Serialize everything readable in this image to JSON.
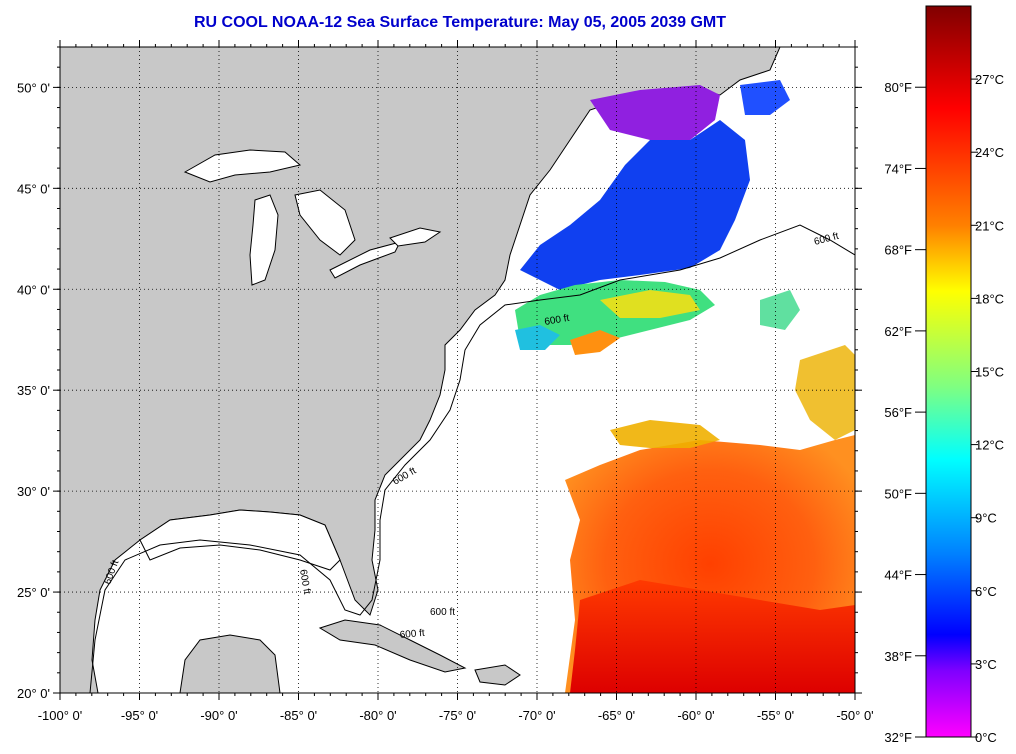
{
  "title": "RU COOL  NOAA-12  Sea Surface Temperature:  May 05, 2005 2039 GMT",
  "map": {
    "lon_labels": [
      "-100° 0'",
      "-95° 0'",
      "-90° 0'",
      "-85° 0'",
      "-80° 0'",
      "-75° 0'",
      "-70° 0'",
      "-65° 0'",
      "-60° 0'",
      "-55° 0'",
      "-50° 0'"
    ],
    "lon_values": [
      -100,
      -95,
      -90,
      -85,
      -80,
      -75,
      -70,
      -65,
      -60,
      -55,
      -50
    ],
    "lat_labels": [
      "50° 0'",
      "45° 0'",
      "40° 0'",
      "35° 0'",
      "30° 0'",
      "25° 0'",
      "20° 0'"
    ],
    "lat_values": [
      50,
      45,
      40,
      35,
      30,
      25,
      20
    ],
    "lon_range": [
      -100,
      -50
    ],
    "lat_range": [
      20,
      52
    ],
    "grid": "dotted",
    "contour_labels": [
      "600 ft",
      "600 ft",
      "600 ft",
      "600 ft",
      "600 ft",
      "600 ft",
      "600 ft"
    ],
    "colors": {
      "land": "#c8c8c8",
      "ocean_no_data": "#ffffff",
      "grid": "#000000"
    }
  },
  "colorbar": {
    "fahrenheit_labels": [
      "80°F",
      "74°F",
      "68°F",
      "62°F",
      "56°F",
      "50°F",
      "44°F",
      "38°F",
      "32°F"
    ],
    "celsius_labels": [
      "27°C",
      "24°C",
      "21°C",
      "18°C",
      "15°C",
      "12°C",
      "9°C",
      "6°C",
      "3°C",
      "0°C"
    ],
    "gradient_stops": [
      "#800000",
      "#ff0000",
      "#ff8000",
      "#ffff00",
      "#80ff80",
      "#00ffff",
      "#0080ff",
      "#0000ff",
      "#8000ff",
      "#ff00ff"
    ]
  }
}
